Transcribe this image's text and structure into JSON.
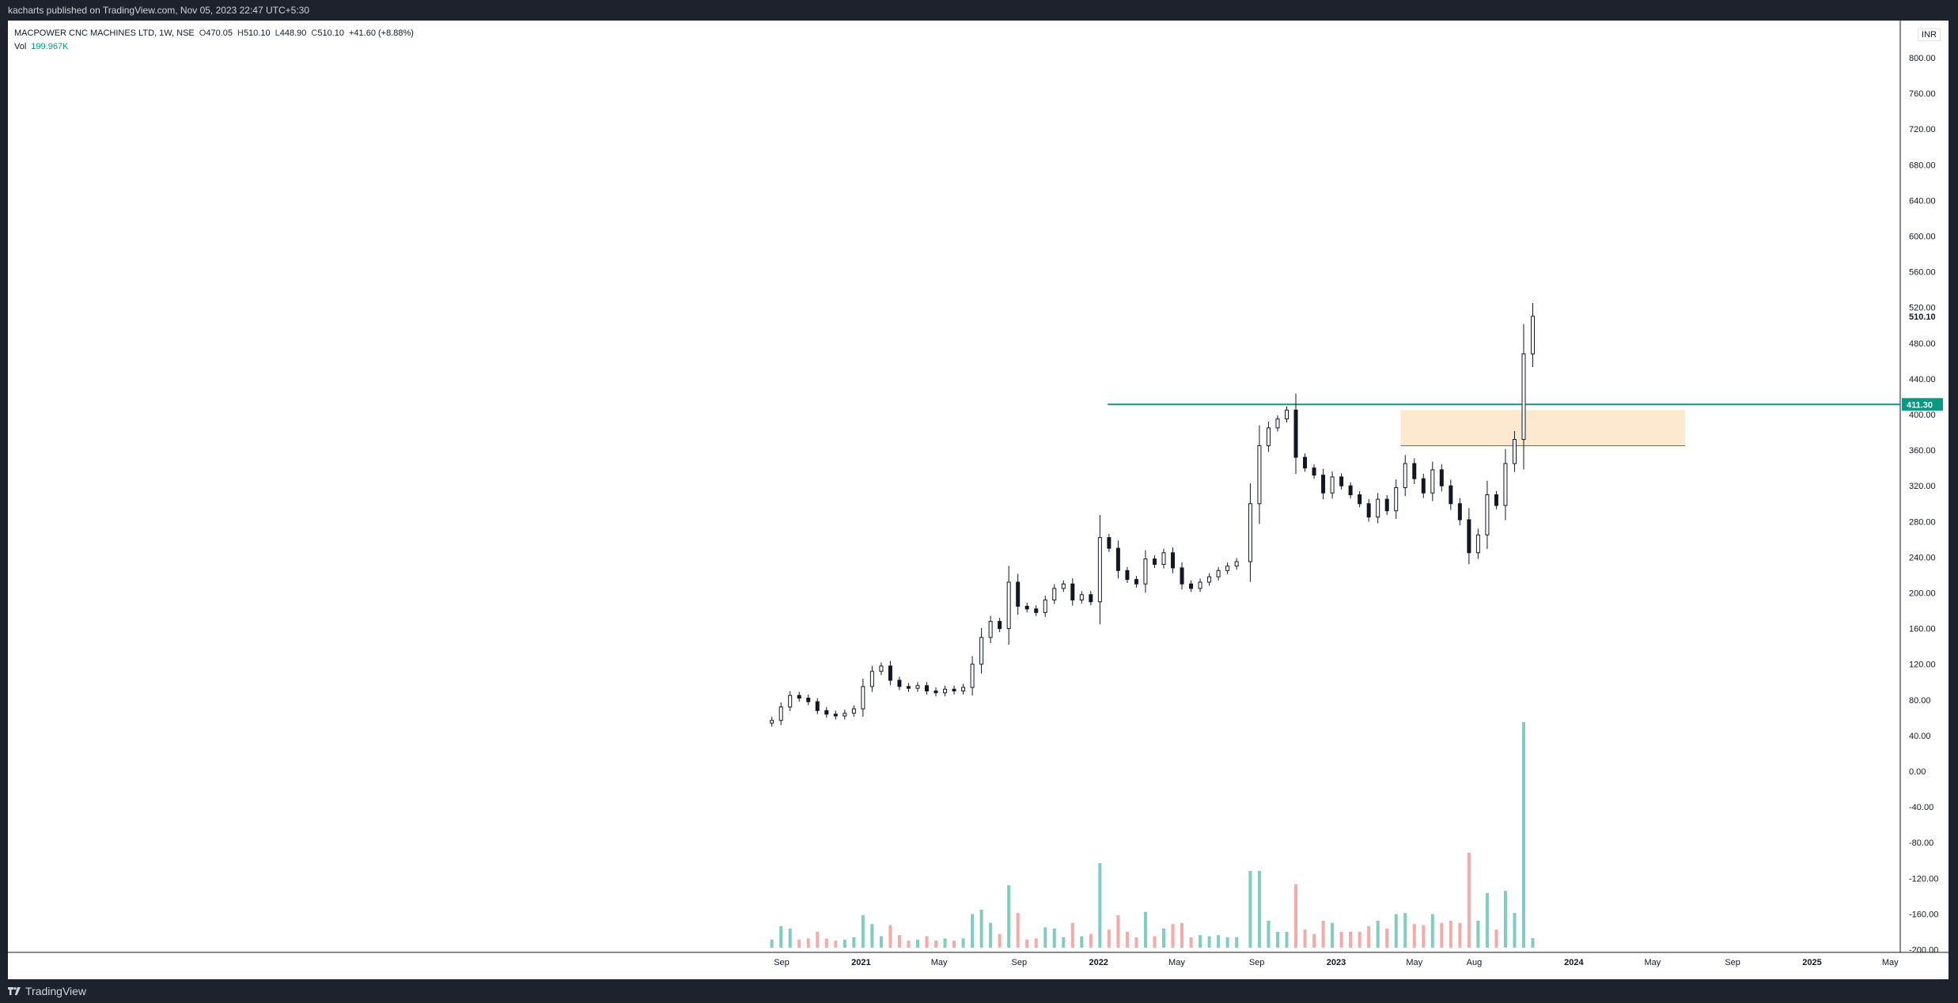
{
  "header": {
    "published": "kacharts published on TradingView.com, Nov 05, 2023 22:47 UTC+5:30"
  },
  "legend": {
    "symbol": "MACPOWER CNC MACHINES LTD, 1W, NSE",
    "open_label": "O",
    "open": "470.05",
    "high_label": "H",
    "high": "510.10",
    "low_label": "L",
    "low": "448.90",
    "close_label": "C",
    "close": "510.10",
    "change": "+41.60 (+8.88%)",
    "vol_label": "Vol",
    "vol": "199.967K"
  },
  "currency": "INR",
  "footer": {
    "brand": "TradingView"
  },
  "colors": {
    "up_volume": "#7fcdbf",
    "down_volume": "#f7a9a7",
    "resistance_line": "#089981",
    "zone_fill": "#fde9cf",
    "candle": "#131722"
  },
  "chart_data": {
    "type": "candlestick",
    "symbol": "MACPOWER CNC MACHINES LTD",
    "interval": "1W",
    "exchange": "NSE",
    "price_axis": {
      "ticks": [
        "800.00",
        "760.00",
        "720.00",
        "680.00",
        "640.00",
        "600.00",
        "560.00",
        "520.00",
        "480.00",
        "440.00",
        "400.00",
        "360.00",
        "320.00",
        "280.00",
        "240.00",
        "200.00",
        "160.00",
        "120.00",
        "80.00",
        "40.00",
        "0.00",
        "-40.00",
        "-80.00",
        "-120.00",
        "-160.00",
        "-200.00"
      ],
      "range": [
        -208,
        832
      ],
      "last_price_label": "510.10",
      "line_price_label": "411.30"
    },
    "time_axis": {
      "ticks": [
        {
          "label": "Sep",
          "date": "2020-09-01",
          "bold": false
        },
        {
          "label": "2021",
          "date": "2021-01-01",
          "bold": true
        },
        {
          "label": "May",
          "date": "2021-05-01",
          "bold": false
        },
        {
          "label": "Sep",
          "date": "2021-09-01",
          "bold": false
        },
        {
          "label": "2022",
          "date": "2022-01-01",
          "bold": true
        },
        {
          "label": "May",
          "date": "2022-05-01",
          "bold": false
        },
        {
          "label": "Sep",
          "date": "2022-09-01",
          "bold": false
        },
        {
          "label": "2023",
          "date": "2023-01-01",
          "bold": true
        },
        {
          "label": "May",
          "date": "2023-05-01",
          "bold": false
        },
        {
          "label": "Aug",
          "date": "2023-08-01",
          "bold": false
        },
        {
          "label": "2024",
          "date": "2024-01-01",
          "bold": true
        },
        {
          "label": "May",
          "date": "2024-05-01",
          "bold": false
        },
        {
          "label": "Sep",
          "date": "2024-09-01",
          "bold": false
        },
        {
          "label": "2025",
          "date": "2025-01-01",
          "bold": true
        },
        {
          "label": "May",
          "date": "2025-05-01",
          "bold": false
        }
      ]
    },
    "series_close": [
      [
        "2020-08-17",
        57
      ],
      [
        "2020-08-31",
        72
      ],
      [
        "2020-09-14",
        85
      ],
      [
        "2020-09-28",
        82
      ],
      [
        "2020-10-12",
        78
      ],
      [
        "2020-10-26",
        68
      ],
      [
        "2020-11-09",
        64
      ],
      [
        "2020-11-23",
        62
      ],
      [
        "2020-12-07",
        65
      ],
      [
        "2020-12-21",
        70
      ],
      [
        "2021-01-04",
        95
      ],
      [
        "2021-01-18",
        112
      ],
      [
        "2021-02-01",
        118
      ],
      [
        "2021-02-15",
        102
      ],
      [
        "2021-03-01",
        95
      ],
      [
        "2021-03-15",
        93
      ],
      [
        "2021-03-29",
        96
      ],
      [
        "2021-04-12",
        90
      ],
      [
        "2021-04-26",
        88
      ],
      [
        "2021-05-10",
        92
      ],
      [
        "2021-05-24",
        90
      ],
      [
        "2021-06-07",
        94
      ],
      [
        "2021-06-21",
        120
      ],
      [
        "2021-07-05",
        150
      ],
      [
        "2021-07-19",
        168
      ],
      [
        "2021-08-02",
        160
      ],
      [
        "2021-08-16",
        212
      ],
      [
        "2021-08-30",
        185
      ],
      [
        "2021-09-13",
        182
      ],
      [
        "2021-09-27",
        178
      ],
      [
        "2021-10-11",
        192
      ],
      [
        "2021-10-25",
        205
      ],
      [
        "2021-11-08",
        210
      ],
      [
        "2021-11-22",
        192
      ],
      [
        "2021-12-06",
        198
      ],
      [
        "2021-12-20",
        190
      ],
      [
        "2022-01-03",
        262
      ],
      [
        "2022-01-17",
        250
      ],
      [
        "2022-01-31",
        225
      ],
      [
        "2022-02-14",
        215
      ],
      [
        "2022-02-28",
        210
      ],
      [
        "2022-03-14",
        238
      ],
      [
        "2022-03-28",
        232
      ],
      [
        "2022-04-11",
        245
      ],
      [
        "2022-04-25",
        228
      ],
      [
        "2022-05-09",
        210
      ],
      [
        "2022-05-23",
        205
      ],
      [
        "2022-06-06",
        212
      ],
      [
        "2022-06-20",
        218
      ],
      [
        "2022-07-04",
        225
      ],
      [
        "2022-07-18",
        230
      ],
      [
        "2022-08-01",
        235
      ],
      [
        "2022-08-22",
        300
      ],
      [
        "2022-09-05",
        365
      ],
      [
        "2022-09-19",
        385
      ],
      [
        "2022-10-03",
        395
      ],
      [
        "2022-10-17",
        405
      ],
      [
        "2022-10-31",
        352
      ],
      [
        "2022-11-14",
        340
      ],
      [
        "2022-11-28",
        332
      ],
      [
        "2022-12-12",
        312
      ],
      [
        "2022-12-26",
        330
      ],
      [
        "2023-01-09",
        320
      ],
      [
        "2023-01-23",
        310
      ],
      [
        "2023-02-06",
        300
      ],
      [
        "2023-02-20",
        285
      ],
      [
        "2023-03-06",
        305
      ],
      [
        "2023-03-20",
        292
      ],
      [
        "2023-04-03",
        318
      ],
      [
        "2023-04-17",
        345
      ],
      [
        "2023-05-01",
        328
      ],
      [
        "2023-05-15",
        312
      ],
      [
        "2023-05-29",
        338
      ],
      [
        "2023-06-12",
        320
      ],
      [
        "2023-06-26",
        300
      ],
      [
        "2023-07-10",
        282
      ],
      [
        "2023-07-24",
        245
      ],
      [
        "2023-08-07",
        265
      ],
      [
        "2023-08-21",
        310
      ],
      [
        "2023-09-04",
        298
      ],
      [
        "2023-09-18",
        345
      ],
      [
        "2023-10-02",
        372
      ],
      [
        "2023-10-16",
        468
      ],
      [
        "2023-10-30",
        510.1
      ]
    ],
    "annotations": {
      "horizontal_line_price": 411.3,
      "horizontal_line_start": "2022-01-15",
      "zone": {
        "from": "2023-04-10",
        "to": "2024-06-20",
        "low": 365,
        "high": 405
      }
    }
  }
}
